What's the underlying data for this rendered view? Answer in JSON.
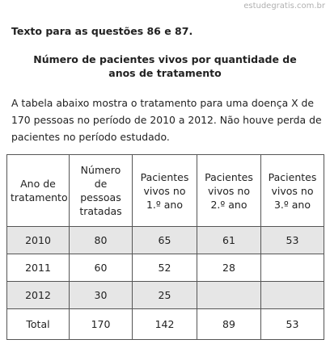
{
  "watermark": "estudegratis.com.br",
  "header": {
    "intro": "Texto para as questões 86 e 87.",
    "title_lines": [
      "Número de pacientes vivos por quantidade de",
      "anos de tratamento"
    ]
  },
  "paragraph_lines": [
    "A tabela abaixo mostra o tratamento para uma doença X de",
    "170 pessoas no período de 2010 a 2012. Não houve perda de",
    "pacientes no período estudado."
  ],
  "table": {
    "columns": [
      "Ano de tratamento",
      "Número de pessoas tratadas",
      "Pacientes vivos no 1.º ano",
      "Pacientes vivos no 2.º ano",
      "Pacientes vivos no 3.º ano"
    ],
    "rows": [
      [
        "2010",
        80,
        65,
        61,
        53
      ],
      [
        "2011",
        60,
        52,
        28,
        null
      ],
      [
        "2012",
        30,
        25,
        null,
        null
      ],
      [
        "Total",
        170,
        142,
        89,
        53
      ]
    ]
  }
}
